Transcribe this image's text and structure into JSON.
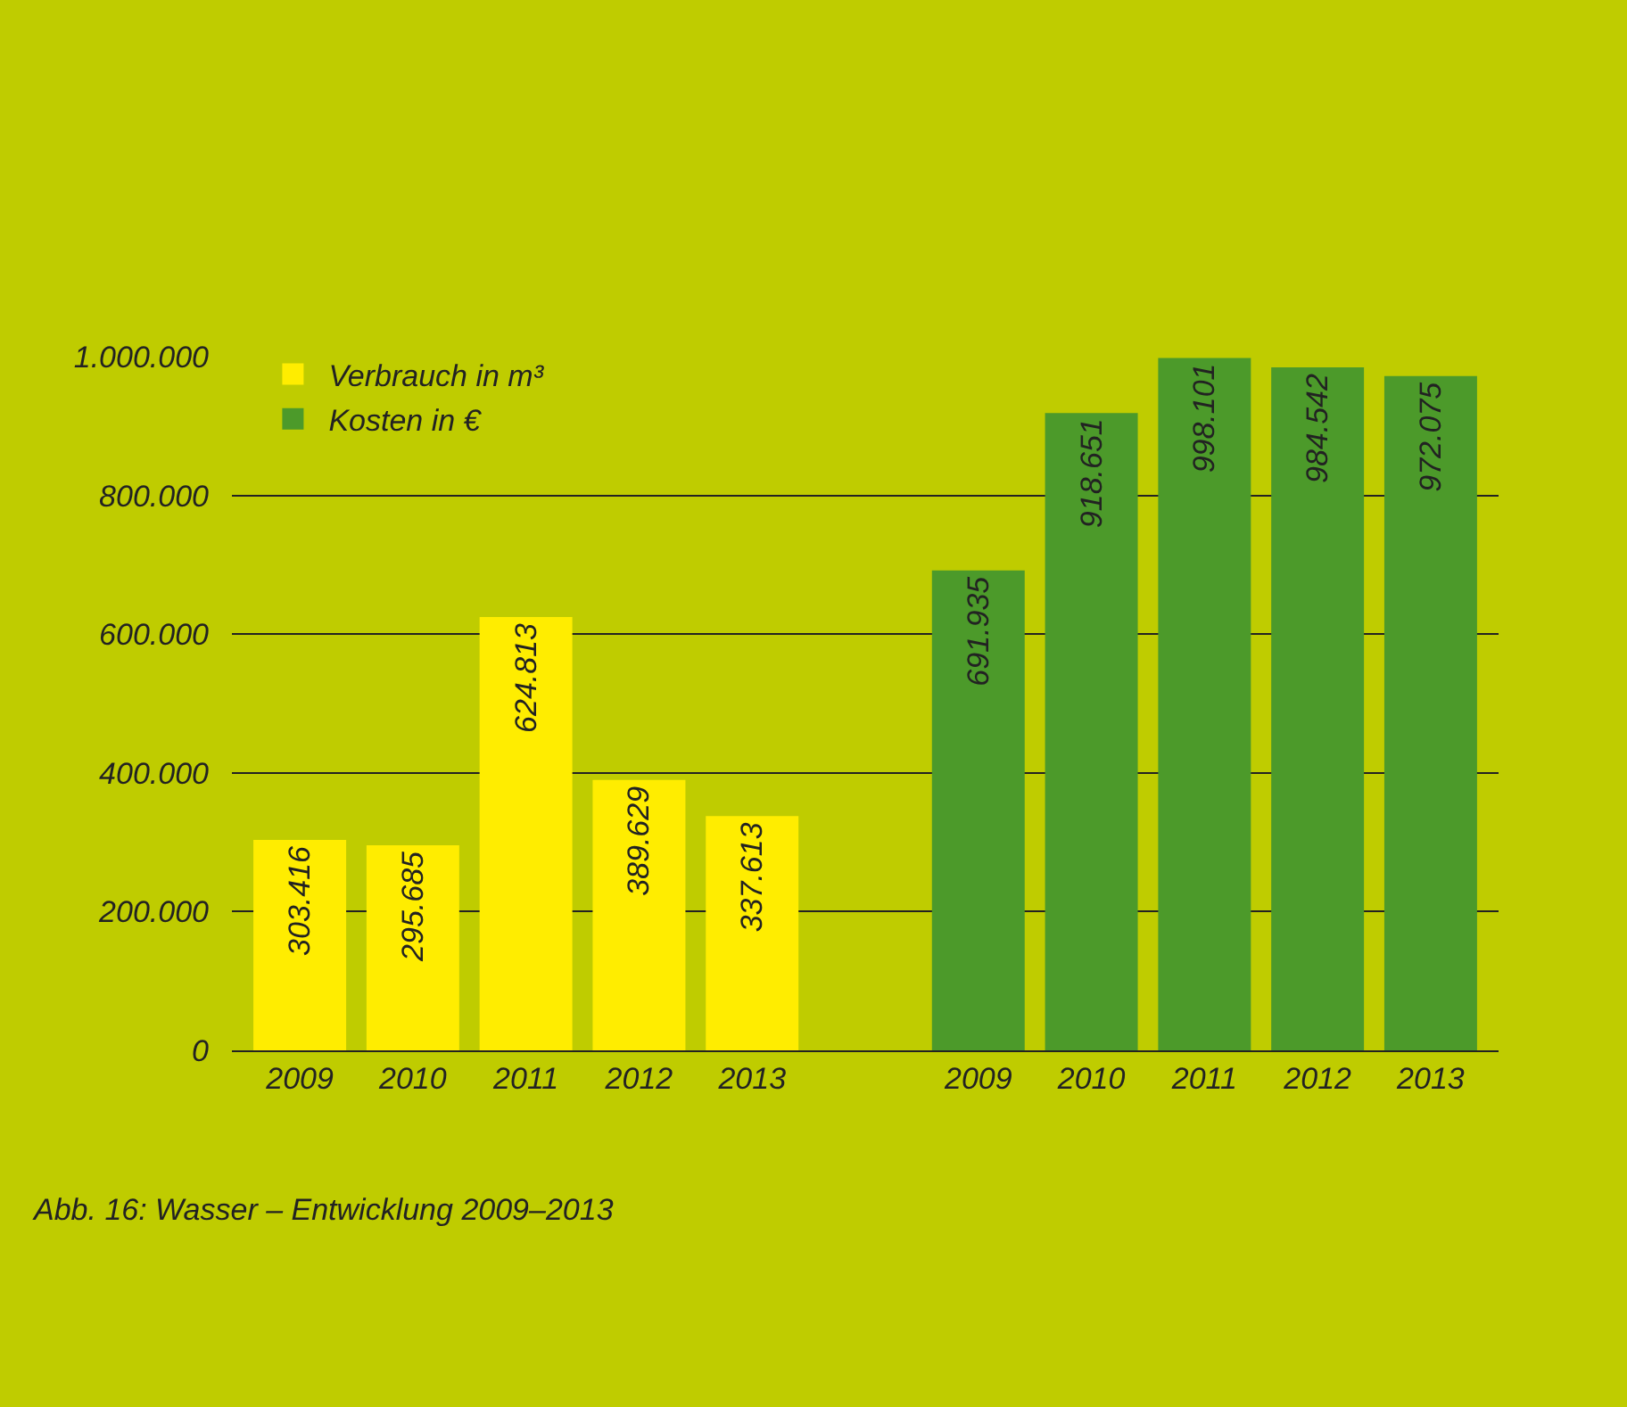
{
  "chart_data": {
    "type": "bar",
    "categories": [
      "2009",
      "2010",
      "2011",
      "2012",
      "2013",
      null,
      "2009",
      "2010",
      "2011",
      "2012",
      "2013"
    ],
    "series": [
      {
        "name": "Verbrauch in m³",
        "color": "#ffed00",
        "values": [
          303416,
          295685,
          624813,
          389629,
          337613,
          null,
          null,
          null,
          null,
          null,
          null
        ],
        "value_labels": [
          "303.416",
          "295.685",
          "624.813",
          "389.629",
          "337.613",
          null,
          null,
          null,
          null,
          null,
          null
        ]
      },
      {
        "name": "Kosten in €",
        "color": "#4c9a2a",
        "values": [
          null,
          null,
          null,
          null,
          null,
          null,
          691935,
          918651,
          998101,
          984542,
          972075
        ],
        "value_labels": [
          null,
          null,
          null,
          null,
          null,
          null,
          "691.935",
          "918.651",
          "998.101",
          "984.542",
          "972.075"
        ]
      }
    ],
    "ylim": [
      0,
      1000000
    ],
    "yticks": [
      {
        "value": 0,
        "label": "0"
      },
      {
        "value": 200000,
        "label": "200.000"
      },
      {
        "value": 400000,
        "label": "400.000"
      },
      {
        "value": 600000,
        "label": "600.000"
      },
      {
        "value": 800000,
        "label": "800.000"
      },
      {
        "value": 1000000,
        "label": "1.000.000"
      }
    ],
    "grid": "y",
    "legend": "top left",
    "annotations": [
      "Abb. 16: Wasser – Entwicklung 2009–2013"
    ]
  }
}
